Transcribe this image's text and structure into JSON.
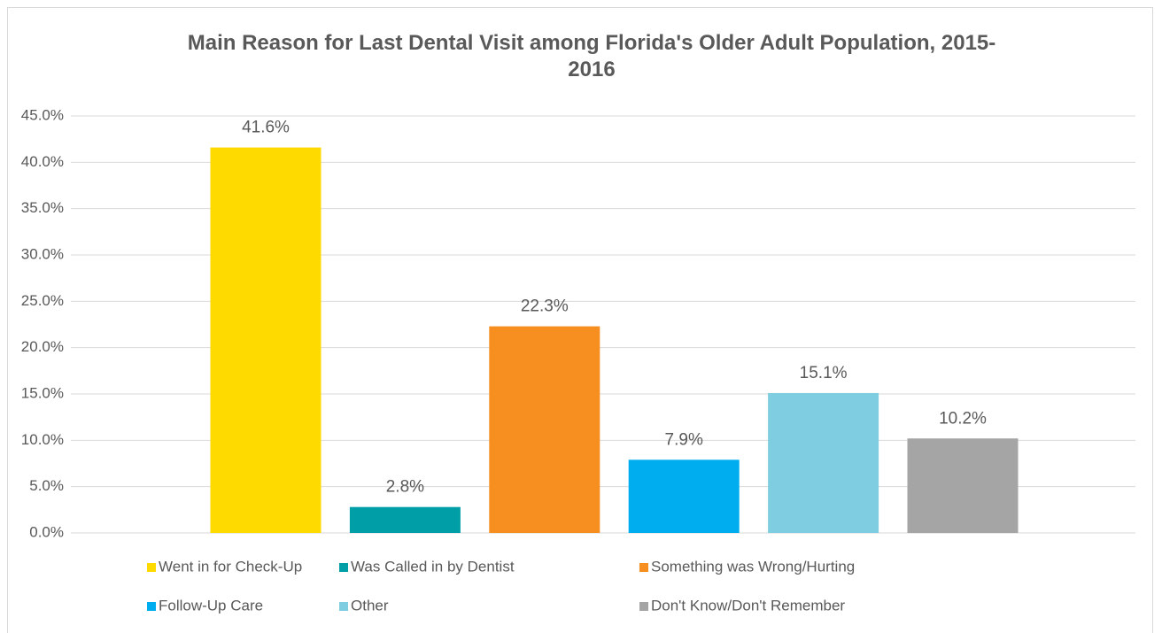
{
  "chart_data": {
    "type": "bar",
    "title": "Main Reason for Last Dental Visit among Florida's Older Adult Population, 2015-2016",
    "categories": [
      null
    ],
    "series": [
      {
        "name": "Went in for Check-Up",
        "color": "#FFDA00",
        "values": [
          41.6
        ],
        "value_labels": [
          "41.6%"
        ]
      },
      {
        "name": "Was Called in by Dentist",
        "color": "#009FA8",
        "values": [
          2.8
        ],
        "value_labels": [
          "2.8%"
        ]
      },
      {
        "name": "Something was Wrong/Hurting",
        "color": "#F68E20",
        "values": [
          22.3
        ],
        "value_labels": [
          "22.3%"
        ]
      },
      {
        "name": "Follow-Up Care",
        "color": "#00AEEF",
        "values": [
          7.9
        ],
        "value_labels": [
          "7.9%"
        ]
      },
      {
        "name": "Other",
        "color": "#7FCDE0",
        "values": [
          15.1
        ],
        "value_labels": [
          "15.1%"
        ]
      },
      {
        "name": "Don't Know/Don't Remember",
        "color": "#A5A5A5",
        "values": [
          10.2
        ],
        "value_labels": [
          "10.2%"
        ]
      }
    ],
    "ylim": [
      0,
      45
    ],
    "yticks": [
      {
        "value": 0,
        "label": "0.0%"
      },
      {
        "value": 5,
        "label": "5.0%"
      },
      {
        "value": 10,
        "label": "10.0%"
      },
      {
        "value": 15,
        "label": "15.0%"
      },
      {
        "value": 20,
        "label": "20.0%"
      },
      {
        "value": 25,
        "label": "25.0%"
      },
      {
        "value": 30,
        "label": "30.0%"
      },
      {
        "value": 35,
        "label": "35.0%"
      },
      {
        "value": 40,
        "label": "40.0%"
      },
      {
        "value": 45,
        "label": "45.0%"
      }
    ],
    "grid": true,
    "legend": "bottom"
  }
}
